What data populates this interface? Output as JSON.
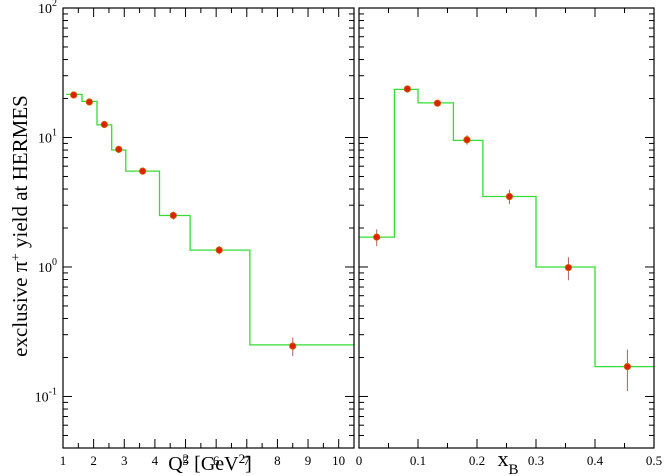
{
  "chart_data": [
    {
      "type": "line",
      "step": true,
      "ylabel_html": [
        "exclusive ",
        "π",
        "+",
        " yield at HERMES"
      ],
      "xlabel_parts": [
        "Q",
        "2",
        " [GeV",
        "2",
        "]"
      ],
      "xlim": [
        1,
        10.5
      ],
      "ylim": [
        0.04,
        100
      ],
      "yscale": "log",
      "xticks": [
        1,
        2,
        3,
        4,
        5,
        6,
        7,
        8,
        9,
        10
      ],
      "yticks": [
        {
          "value": 0.1,
          "base": "10",
          "exp": "-1"
        },
        {
          "value": 1,
          "base": "10",
          "exp": "0"
        },
        {
          "value": 10,
          "base": "10",
          "exp": "1"
        },
        {
          "value": 100,
          "base": "10",
          "exp": "2"
        }
      ],
      "histogram": {
        "edges": [
          1.1,
          1.62,
          2.11,
          2.59,
          3.05,
          4.15,
          5.15,
          7.1,
          10.5
        ],
        "values": [
          21.5,
          19.0,
          12.5,
          8.0,
          5.5,
          2.5,
          1.35,
          0.25
        ]
      },
      "points": [
        {
          "x": 1.35,
          "y": 21.3,
          "err": 1.2
        },
        {
          "x": 1.86,
          "y": 18.8,
          "err": 1.0
        },
        {
          "x": 2.35,
          "y": 12.6,
          "err": 0.7
        },
        {
          "x": 2.82,
          "y": 8.1,
          "err": 0.5
        },
        {
          "x": 3.6,
          "y": 5.5,
          "err": 0.35
        },
        {
          "x": 4.6,
          "y": 2.5,
          "err": 0.18
        },
        {
          "x": 6.1,
          "y": 1.35,
          "err": 0.1
        },
        {
          "x": 8.5,
          "y": 0.245,
          "err": 0.04
        }
      ],
      "colors": {
        "histogram": "#33dd33",
        "marker": "#dd2200",
        "marker_edge": "#cc6600",
        "errorbar": "#b07070"
      }
    },
    {
      "type": "line",
      "step": true,
      "xlabel_parts": [
        "x",
        "B"
      ],
      "xlim": [
        0,
        0.5
      ],
      "ylim": [
        0.04,
        100
      ],
      "yscale": "log",
      "xticks": [
        0,
        0.1,
        0.2,
        0.3,
        0.4,
        0.5
      ],
      "histogram": {
        "edges": [
          0.0,
          0.06,
          0.1,
          0.16,
          0.21,
          0.3,
          0.4,
          0.5
        ],
        "values": [
          1.7,
          23.5,
          18.5,
          9.5,
          3.5,
          1.0,
          0.17
        ]
      },
      "points": [
        {
          "x": 0.03,
          "y": 1.7,
          "err": 0.25
        },
        {
          "x": 0.082,
          "y": 23.7,
          "err": 1.2
        },
        {
          "x": 0.133,
          "y": 18.4,
          "err": 1.0
        },
        {
          "x": 0.183,
          "y": 9.6,
          "err": 0.8
        },
        {
          "x": 0.255,
          "y": 3.5,
          "err": 0.45
        },
        {
          "x": 0.355,
          "y": 0.99,
          "err": 0.2
        },
        {
          "x": 0.455,
          "y": 0.17,
          "err": 0.06
        }
      ],
      "colors": {
        "histogram": "#33dd33",
        "marker": "#dd2200",
        "marker_edge": "#cc6600",
        "errorbar": "#b07070"
      }
    }
  ]
}
